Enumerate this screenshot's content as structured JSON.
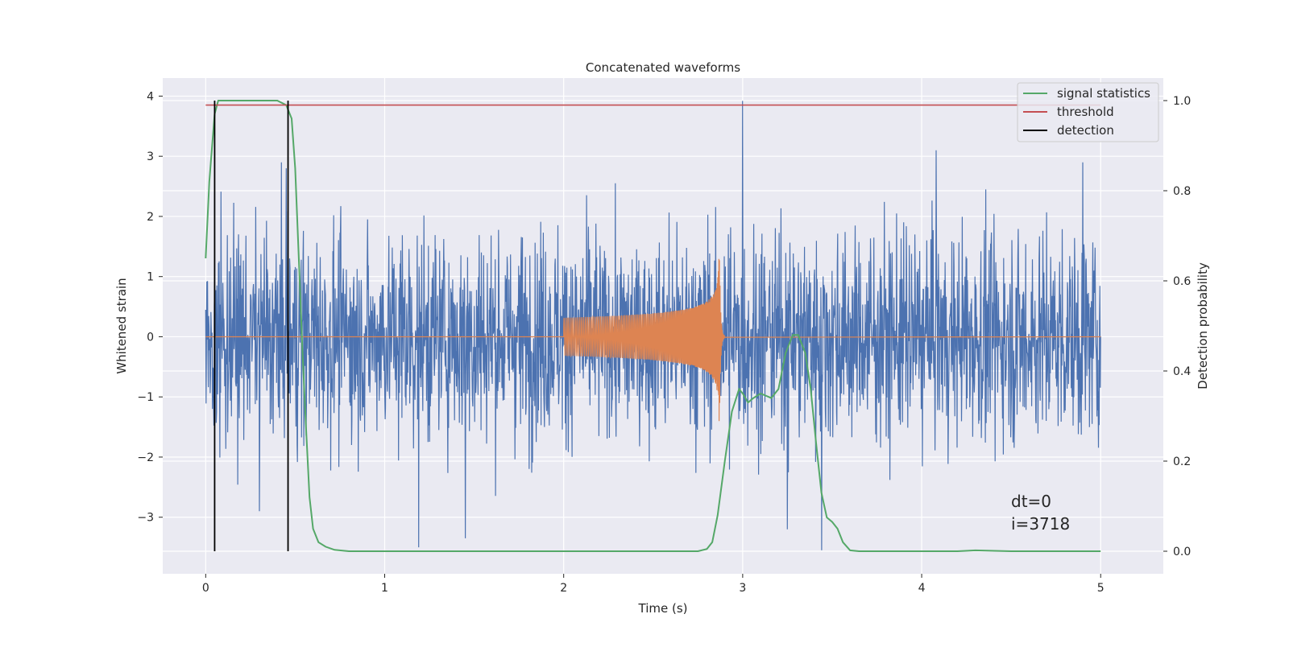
{
  "chart_data": {
    "type": "line",
    "title": "Concatenated waveforms",
    "xlabel": "Time (s)",
    "ylabel_left": "Whitened strain",
    "ylabel_right": "Detection probability",
    "xlim": [
      -0.24,
      5.35
    ],
    "ylim_left": [
      -3.94,
      4.3
    ],
    "ylim_right": [
      -0.05,
      1.05
    ],
    "x_ticks": [
      0,
      1,
      2,
      3,
      4,
      5
    ],
    "x_tick_labels": [
      "0",
      "1",
      "2",
      "3",
      "4",
      "5"
    ],
    "y_left_ticks": [
      -3,
      -2,
      -1,
      0,
      1,
      2,
      3,
      4
    ],
    "y_left_tick_labels": [
      "−3",
      "−2",
      "−1",
      "0",
      "1",
      "2",
      "3",
      "4"
    ],
    "y_right_ticks": [
      0.0,
      0.2,
      0.4,
      0.6,
      0.8,
      1.0
    ],
    "y_right_tick_labels": [
      "0.0",
      "0.2",
      "0.4",
      "0.6",
      "0.8",
      "1.0"
    ],
    "grid": true,
    "legend_position": "top-right",
    "colors": {
      "strain": "#4c72b0",
      "injection": "#dd8452",
      "signal_statistics": "#55a868",
      "threshold": "#c44e52",
      "detection": "#000000",
      "axes_bg": "#eaeaf2"
    },
    "legend": [
      {
        "label": "signal statistics",
        "color": "#55a868"
      },
      {
        "label": "threshold",
        "color": "#c44e52"
      },
      {
        "label": "detection",
        "color": "#000000"
      }
    ],
    "series": [
      {
        "name": "signal statistics",
        "axis": "right",
        "x": [
          0.0,
          0.02,
          0.05,
          0.07,
          0.1,
          0.2,
          0.3,
          0.4,
          0.45,
          0.48,
          0.5,
          0.52,
          0.54,
          0.56,
          0.58,
          0.6,
          0.63,
          0.67,
          0.72,
          0.8,
          1.0,
          1.5,
          2.0,
          2.5,
          2.75,
          2.8,
          2.83,
          2.86,
          2.9,
          2.94,
          2.98,
          3.0,
          3.03,
          3.06,
          3.1,
          3.13,
          3.16,
          3.2,
          3.24,
          3.28,
          3.31,
          3.35,
          3.38,
          3.41,
          3.44,
          3.47,
          3.5,
          3.53,
          3.56,
          3.6,
          3.65,
          3.75,
          4.0,
          4.2,
          4.3,
          4.5,
          5.0
        ],
        "y": [
          0.65,
          0.82,
          0.97,
          1.0,
          1.0,
          1.0,
          1.0,
          1.0,
          0.99,
          0.96,
          0.85,
          0.65,
          0.45,
          0.28,
          0.12,
          0.05,
          0.02,
          0.01,
          0.003,
          0.0,
          0.0,
          0.0,
          0.0,
          0.0,
          0.0,
          0.005,
          0.02,
          0.08,
          0.2,
          0.31,
          0.36,
          0.35,
          0.33,
          0.34,
          0.35,
          0.345,
          0.34,
          0.36,
          0.44,
          0.48,
          0.48,
          0.44,
          0.36,
          0.24,
          0.13,
          0.075,
          0.065,
          0.05,
          0.02,
          0.002,
          0.0,
          0.0,
          0.0,
          0.0,
          0.002,
          0.0,
          0.0
        ]
      },
      {
        "name": "threshold",
        "axis": "right",
        "x": [
          0.0,
          5.0
        ],
        "y": [
          0.99,
          0.99
        ]
      },
      {
        "name": "detection",
        "axis": "right",
        "vlines_x": [
          0.05,
          0.46
        ],
        "y_range": [
          0.0,
          1.0
        ]
      },
      {
        "name": "",
        "axis": "left",
        "kind": "noise",
        "x_range": [
          0,
          5
        ],
        "amplitude_sigma": 0.85,
        "notable_peaks": [
          {
            "x": 0.45,
            "y": 2.8
          },
          {
            "x": 0.3,
            "y": -2.9
          },
          {
            "x": 1.19,
            "y": -3.5
          },
          {
            "x": 1.45,
            "y": -3.35
          },
          {
            "x": 3.0,
            "y": 3.92
          },
          {
            "x": 3.25,
            "y": -3.2
          },
          {
            "x": 3.44,
            "y": -3.55
          },
          {
            "x": 4.08,
            "y": 3.1
          },
          {
            "x": 4.9,
            "y": 2.9
          }
        ]
      },
      {
        "name": "",
        "axis": "left",
        "kind": "chirp",
        "x_range": [
          2.0,
          2.9
        ],
        "peak_x": 2.87,
        "peak_amplitude": 1.55
      }
    ],
    "annotations": [
      "dt=0",
      "i=3718"
    ]
  }
}
